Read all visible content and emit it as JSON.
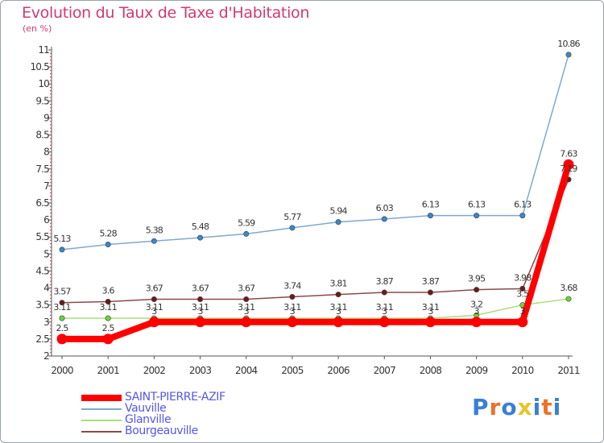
{
  "header": {
    "title": "Evolution du Taux de Taxe d'Habitation",
    "subtitle": "(en %)"
  },
  "logo": {
    "text": "Proxiti",
    "colors": [
      "#3a7fd6",
      "#e8742a",
      "#3a7fd6",
      "#e8c42a",
      "#3a7fd6",
      "#e8742a",
      "#3a7fd6"
    ]
  },
  "chart_data": {
    "type": "line",
    "title": "Evolution du Taux de Taxe d'Habitation",
    "ylabel": "(en %)",
    "xlabel": "",
    "x": [
      "2000",
      "2001",
      "2002",
      "2003",
      "2004",
      "2005",
      "2006",
      "2007",
      "2008",
      "2009",
      "2010",
      "2011"
    ],
    "ylim": [
      2,
      11
    ],
    "yticks": [
      2,
      2.5,
      3,
      3.5,
      4,
      4.5,
      5,
      5.5,
      6,
      6.5,
      7,
      7.5,
      8,
      8.5,
      9,
      9.5,
      10,
      10.5,
      11
    ],
    "ytick_labels": [
      "2",
      "2.5",
      "3",
      "3.5",
      "4",
      "4.5",
      "5",
      "5.5",
      "6",
      "6.5",
      "7",
      "7.5",
      "8",
      "8.5",
      "9",
      "9.5",
      "10",
      "10.5",
      "11"
    ],
    "grid": false,
    "legend_position": "bottom-left",
    "series": [
      {
        "name": "SAINT-PIERRE-AZIF",
        "color": "#ff0000",
        "marker_color": "#ff0000",
        "emphasis": true,
        "values": [
          2.5,
          2.5,
          3,
          3,
          3,
          3,
          3,
          3,
          3,
          3,
          3,
          7.63
        ],
        "labels": [
          "2.5",
          "2.5",
          "3",
          "3",
          "3",
          "3",
          "3",
          "3",
          "3",
          "3",
          "3",
          "7.63"
        ]
      },
      {
        "name": "Vauville",
        "color": "#7fa8d0",
        "marker_color": "#3a86c8",
        "values": [
          5.13,
          5.28,
          5.38,
          5.48,
          5.59,
          5.77,
          5.94,
          6.03,
          6.13,
          6.13,
          6.13,
          10.86
        ],
        "labels": [
          "5.13",
          "5.28",
          "5.38",
          "5.48",
          "5.59",
          "5.77",
          "5.94",
          "6.03",
          "6.13",
          "6.13",
          "6.13",
          "10.86"
        ]
      },
      {
        "name": "Glanville",
        "color": "#a8df7a",
        "marker_color": "#6fd13a",
        "values": [
          3.11,
          3.11,
          3.11,
          3.11,
          3.11,
          3.11,
          3.11,
          3.11,
          3.11,
          3.2,
          3.5,
          3.68
        ],
        "labels": [
          "3.11",
          "3.11",
          "3.11",
          "3.11",
          "3.11",
          "3.11",
          "3.11",
          "3.11",
          "3.11",
          "3.2",
          "3.5",
          "3.68"
        ]
      },
      {
        "name": "Bourgeauville",
        "color": "#8a4a4a",
        "marker_color": "#6a1a1a",
        "values": [
          3.57,
          3.6,
          3.67,
          3.67,
          3.67,
          3.74,
          3.81,
          3.87,
          3.87,
          3.95,
          3.98,
          7.19
        ],
        "labels": [
          "3.57",
          "3.6",
          "3.67",
          "3.67",
          "3.67",
          "3.74",
          "3.81",
          "3.87",
          "3.87",
          "3.95",
          "3.98",
          "7.19"
        ]
      }
    ]
  }
}
